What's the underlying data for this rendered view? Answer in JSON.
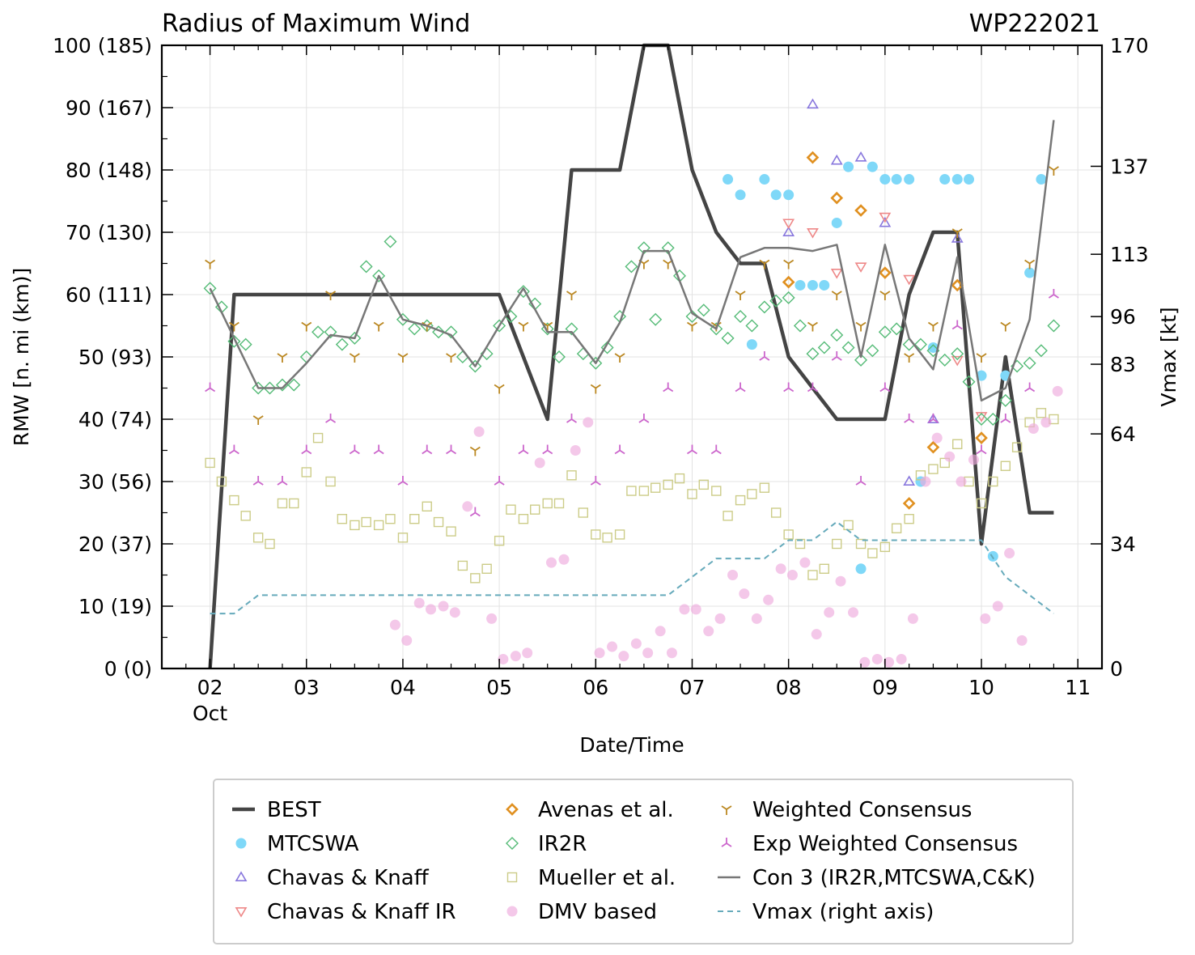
{
  "chart_data": {
    "type": "line",
    "title": "Radius of Maximum Wind",
    "storm_id": "WP222021",
    "xlabel": "Date/Time",
    "ylabel": "RMW [n. mi (km)]",
    "y2label": "Vmax [kt]",
    "xlim": [
      1.5,
      11.25
    ],
    "ylim": [
      0,
      100
    ],
    "y2lim": [
      0,
      170
    ],
    "x_ticks": [
      2,
      3,
      4,
      5,
      6,
      7,
      8,
      9,
      10,
      11
    ],
    "x_tick_labels": [
      "02",
      "03",
      "04",
      "05",
      "06",
      "07",
      "08",
      "09",
      "10",
      "11"
    ],
    "x_month_label": "Oct",
    "y_ticks": [
      0,
      10,
      20,
      30,
      40,
      50,
      60,
      70,
      80,
      90,
      100
    ],
    "y_tick_labels": [
      "0 (0)",
      "10 (19)",
      "20 (37)",
      "30 (56)",
      "40 (74)",
      "50 (93)",
      "60 (111)",
      "70 (130)",
      "80 (148)",
      "90 (167)",
      "100 (185)"
    ],
    "y2_ticks": [
      0,
      34,
      64,
      83,
      96,
      113,
      137,
      170
    ],
    "y2_tick_labels": [
      "0",
      "34",
      "64",
      "83",
      "96",
      "113",
      "137",
      "170"
    ],
    "grid": true,
    "legend_position": "bottom",
    "series": [
      {
        "name": "BEST",
        "style": "line",
        "color": "#444444",
        "width": 4.5,
        "x": [
          2.0,
          2.25,
          2.5,
          3.0,
          3.5,
          4.0,
          4.5,
          5.0,
          5.5,
          5.75,
          6.0,
          6.25,
          6.5,
          6.75,
          7.0,
          7.25,
          7.5,
          7.75,
          8.0,
          8.25,
          8.5,
          8.75,
          9.0,
          9.25,
          9.5,
          9.75,
          10.0,
          10.25,
          10.5,
          10.75
        ],
        "y": [
          0,
          60,
          60,
          60,
          60,
          60,
          60,
          60,
          40,
          80,
          80,
          80,
          100,
          100,
          80,
          70,
          65,
          65,
          50,
          45,
          40,
          40,
          40,
          60,
          70,
          70,
          20,
          50,
          25,
          25
        ]
      },
      {
        "name": "MTCSWA",
        "style": "marker",
        "marker": "circle",
        "color": "#7fd8f8",
        "x": [
          7.37,
          7.5,
          7.62,
          7.75,
          7.87,
          8.0,
          8.12,
          8.25,
          8.37,
          8.5,
          8.62,
          8.75,
          8.87,
          9.0,
          9.12,
          9.25,
          9.37,
          9.5,
          9.62,
          9.75,
          9.87,
          10.0,
          10.12,
          10.25,
          10.5,
          10.62
        ],
        "y": [
          78.5,
          76,
          52,
          78.5,
          76,
          76,
          61.5,
          61.5,
          61.5,
          71.5,
          80.5,
          16,
          80.5,
          78.5,
          78.5,
          78.5,
          30,
          51.5,
          78.5,
          78.5,
          78.5,
          47,
          18,
          47,
          63.5,
          78.5
        ]
      },
      {
        "name": "Chavas & Knaff",
        "style": "marker",
        "marker": "triangle-up",
        "color": "#8877dd",
        "x": [
          8.0,
          8.25,
          8.5,
          8.75,
          9.0,
          9.25,
          9.5,
          9.75
        ],
        "y": [
          70,
          90.5,
          81.5,
          82,
          71.5,
          30,
          40,
          69
        ]
      },
      {
        "name": "Chavas & Knaff IR",
        "style": "marker",
        "marker": "triangle-down",
        "color": "#ee8888",
        "x": [
          8.0,
          8.25,
          8.5,
          8.75,
          9.0,
          9.25,
          9.75,
          10.0
        ],
        "y": [
          71.5,
          70,
          63.5,
          64.5,
          72.5,
          62.5,
          49.5,
          40.5
        ]
      },
      {
        "name": "Avenas et al.",
        "style": "marker",
        "marker": "diamond",
        "color": "#e09020",
        "x": [
          8.0,
          8.25,
          8.5,
          8.75,
          9.0,
          9.25,
          9.5,
          9.75,
          10.0
        ],
        "y": [
          62,
          82,
          75.5,
          73.5,
          63.5,
          26.5,
          35.5,
          61.5,
          37
        ]
      },
      {
        "name": "IR2R",
        "style": "marker",
        "marker": "diamond-open",
        "color": "#55bb77",
        "x": [
          2.0,
          2.12,
          2.25,
          2.37,
          2.5,
          2.62,
          2.75,
          2.87,
          3.0,
          3.12,
          3.25,
          3.37,
          3.5,
          3.62,
          3.75,
          3.87,
          4.0,
          4.12,
          4.25,
          4.37,
          4.5,
          4.62,
          4.75,
          4.87,
          5.0,
          5.12,
          5.25,
          5.37,
          5.5,
          5.62,
          5.75,
          5.87,
          6.0,
          6.12,
          6.25,
          6.37,
          6.5,
          6.62,
          6.75,
          6.87,
          7.0,
          7.12,
          7.25,
          7.37,
          7.5,
          7.62,
          7.75,
          7.87,
          8.0,
          8.12,
          8.25,
          8.37,
          8.5,
          8.62,
          8.75,
          8.87,
          9.0,
          9.12,
          9.25,
          9.37,
          9.5,
          9.62,
          9.75,
          9.87,
          10.0,
          10.12,
          10.25,
          10.37,
          10.5,
          10.62,
          10.75
        ],
        "y": [
          61,
          58,
          52.5,
          52,
          45,
          45,
          45.5,
          45.5,
          50,
          54,
          54,
          52,
          53,
          64.5,
          63,
          68.5,
          56,
          54.5,
          55,
          54,
          54,
          50,
          48.5,
          50.5,
          55,
          56.5,
          60.5,
          58.5,
          54.5,
          50,
          54.5,
          50.5,
          49,
          51.5,
          56.5,
          64.5,
          67.5,
          56,
          67.5,
          63,
          56.5,
          57.5,
          54.5,
          53,
          56.5,
          55,
          58,
          59,
          59.5,
          55,
          50.5,
          51.5,
          53.5,
          51.5,
          49.5,
          51,
          54,
          54.5,
          52,
          52,
          51,
          49.5,
          50.5,
          46,
          40,
          40,
          43,
          48.5,
          49,
          51,
          55
        ]
      },
      {
        "name": "Mueller et al.",
        "style": "marker",
        "marker": "square-open",
        "color": "#cccc88",
        "x": [
          2.0,
          2.12,
          2.25,
          2.37,
          2.5,
          2.62,
          2.75,
          2.87,
          3.0,
          3.12,
          3.25,
          3.37,
          3.5,
          3.62,
          3.75,
          3.87,
          4.0,
          4.12,
          4.25,
          4.37,
          4.5,
          4.62,
          4.75,
          4.87,
          5.0,
          5.12,
          5.25,
          5.37,
          5.5,
          5.62,
          5.75,
          5.87,
          6.0,
          6.12,
          6.25,
          6.37,
          6.5,
          6.62,
          6.75,
          6.87,
          7.0,
          7.12,
          7.25,
          7.37,
          7.5,
          7.62,
          7.75,
          7.87,
          8.0,
          8.12,
          8.25,
          8.37,
          8.5,
          8.62,
          8.75,
          8.87,
          9.0,
          9.12,
          9.25,
          9.37,
          9.5,
          9.62,
          9.75,
          9.87,
          10.0,
          10.12,
          10.25,
          10.37,
          10.5,
          10.62,
          10.75
        ],
        "y": [
          33,
          30,
          27,
          24.5,
          21,
          20,
          26.5,
          26.5,
          31.5,
          37,
          30,
          24,
          23,
          23.5,
          23,
          24,
          21,
          24,
          26,
          23.5,
          22,
          16.5,
          14.5,
          16,
          20.5,
          25.5,
          24,
          25.5,
          26.5,
          26.5,
          31,
          25,
          21.5,
          21,
          21.5,
          28.5,
          28.5,
          29,
          29.5,
          30.5,
          28,
          29.5,
          28.5,
          24.5,
          27,
          28,
          29,
          25,
          21.5,
          20,
          15,
          16,
          20,
          23,
          20,
          18.5,
          19.5,
          22.5,
          24,
          31,
          32,
          33,
          36,
          30,
          26.5,
          30,
          32.5,
          35.5,
          39.5,
          41,
          40
        ]
      },
      {
        "name": "DMV based",
        "style": "marker",
        "marker": "circle-faint",
        "color": "#eeaadd",
        "x": [
          3.92,
          4.04,
          4.17,
          4.29,
          4.42,
          4.54,
          4.67,
          4.79,
          4.92,
          5.04,
          5.17,
          5.29,
          5.42,
          5.54,
          5.67,
          5.79,
          5.92,
          6.04,
          6.17,
          6.29,
          6.42,
          6.54,
          6.67,
          6.79,
          6.92,
          7.04,
          7.17,
          7.29,
          7.42,
          7.54,
          7.67,
          7.79,
          7.92,
          8.04,
          8.17,
          8.29,
          8.42,
          8.54,
          8.67,
          8.79,
          8.92,
          9.04,
          9.17,
          9.29,
          9.42,
          9.54,
          9.67,
          9.79,
          9.92,
          10.04,
          10.17,
          10.29,
          10.42,
          10.54,
          10.67,
          10.79
        ],
        "y": [
          7,
          4.5,
          10.5,
          9.5,
          10,
          9,
          26,
          38,
          8,
          1.5,
          2,
          2.5,
          33,
          17,
          17.5,
          35,
          39.5,
          2.5,
          3.5,
          2,
          4,
          2.5,
          6,
          2.5,
          9.5,
          9.5,
          6,
          8,
          15,
          12,
          8,
          11,
          16,
          15,
          17,
          5.5,
          9,
          14,
          9,
          1,
          1.5,
          1,
          1.5,
          8,
          30,
          37,
          34,
          30,
          33.5,
          8,
          10,
          18.5,
          4.5,
          38.5,
          39.5,
          44.5
        ]
      },
      {
        "name": "Weighted Consensus",
        "style": "marker",
        "marker": "tri-down",
        "color": "#bb8822",
        "x": [
          2.0,
          2.25,
          2.5,
          2.75,
          3.0,
          3.25,
          3.5,
          3.75,
          4.0,
          4.25,
          4.5,
          4.75,
          5.0,
          5.25,
          5.5,
          5.75,
          6.0,
          6.25,
          6.5,
          6.75,
          7.0,
          7.25,
          7.5,
          7.75,
          8.0,
          8.25,
          8.5,
          8.75,
          9.0,
          9.25,
          9.5,
          9.75,
          10.0,
          10.25,
          10.5,
          10.75
        ],
        "y": [
          65,
          55,
          40,
          50,
          55,
          60,
          50,
          55,
          50,
          55,
          50,
          35,
          45,
          55,
          55,
          60,
          45,
          50,
          65,
          65,
          55,
          55,
          60,
          65,
          65,
          55,
          60,
          55,
          60,
          50,
          55,
          70,
          50,
          55,
          65,
          80
        ]
      },
      {
        "name": "Exp Weighted Consensus",
        "style": "marker",
        "marker": "tri-up",
        "color": "#cc66cc",
        "x": [
          2.0,
          2.25,
          2.5,
          2.75,
          3.0,
          3.25,
          3.5,
          3.75,
          4.0,
          4.25,
          4.5,
          4.75,
          5.0,
          5.25,
          5.5,
          5.75,
          6.0,
          6.25,
          6.5,
          6.75,
          7.0,
          7.25,
          7.5,
          7.75,
          8.0,
          8.25,
          8.5,
          8.75,
          9.0,
          9.25,
          9.5,
          9.75,
          10.0,
          10.25,
          10.5,
          10.75
        ],
        "y": [
          45,
          35,
          30,
          30,
          35,
          40,
          35,
          35,
          30,
          35,
          35,
          25,
          30,
          35,
          35,
          40,
          30,
          35,
          40,
          45,
          35,
          35,
          45,
          50,
          45,
          45,
          50,
          30,
          45,
          40,
          40,
          55,
          35,
          40,
          45,
          60
        ]
      },
      {
        "name": "Con 3 (IR2R,MTCSWA,C&K)",
        "style": "line",
        "color": "#777777",
        "width": 2.5,
        "x": [
          2.0,
          2.25,
          2.5,
          2.75,
          3.0,
          3.25,
          3.5,
          3.75,
          4.0,
          4.25,
          4.5,
          4.75,
          5.0,
          5.25,
          5.5,
          5.75,
          6.0,
          6.25,
          6.5,
          6.75,
          7.0,
          7.25,
          7.5,
          7.75,
          8.0,
          8.25,
          8.5,
          8.75,
          9.0,
          9.25,
          9.5,
          9.75,
          10.0,
          10.25,
          10.5,
          10.75
        ],
        "y": [
          61,
          53,
          45,
          45,
          49,
          53.5,
          53,
          63,
          56,
          55,
          53.5,
          48.5,
          55,
          61,
          54,
          54,
          49,
          55.5,
          67,
          67,
          57,
          54.5,
          66,
          67.5,
          67.5,
          67,
          68,
          50,
          68,
          53,
          48,
          66,
          43,
          45,
          56,
          88
        ]
      },
      {
        "name": "Vmax (right axis)",
        "style": "dashed",
        "color": "#66aabb",
        "width": 2,
        "axis": "right",
        "x": [
          2.0,
          2.25,
          2.5,
          3.0,
          3.5,
          4.0,
          4.5,
          5.0,
          5.5,
          6.0,
          6.5,
          6.75,
          7.0,
          7.25,
          7.5,
          7.75,
          8.0,
          8.25,
          8.5,
          8.75,
          9.0,
          9.5,
          10.0,
          10.25,
          10.5,
          10.75
        ],
        "y": [
          15,
          15,
          20,
          20,
          20,
          20,
          20,
          20,
          20,
          20,
          20,
          20,
          25,
          30,
          30,
          30,
          35,
          35,
          40,
          35,
          35,
          35,
          35,
          25,
          20,
          15
        ]
      }
    ]
  }
}
